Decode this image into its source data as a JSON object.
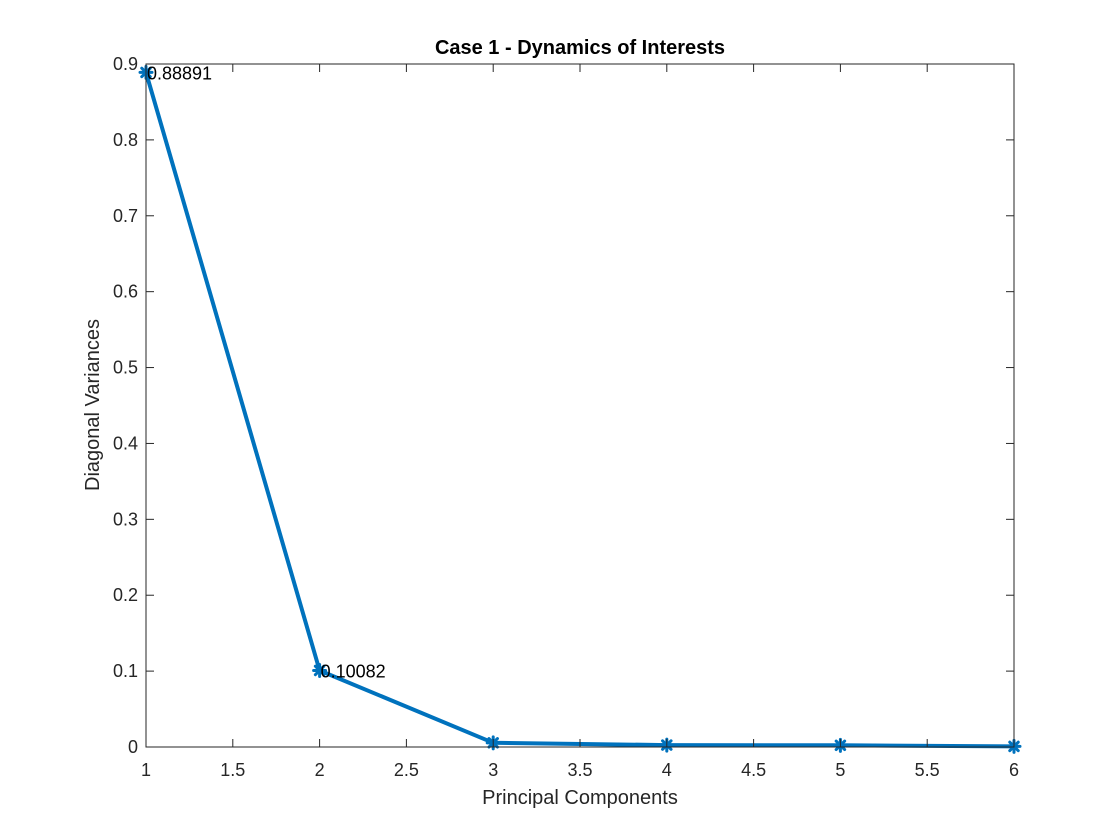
{
  "chart_data": {
    "type": "line",
    "title": "Case 1 - Dynamics of Interests",
    "xlabel": "Principal Components",
    "ylabel": "Diagonal Variances",
    "xlim": [
      1,
      6
    ],
    "ylim": [
      0,
      0.9
    ],
    "xticks": [
      1,
      1.5,
      2,
      2.5,
      3,
      3.5,
      4,
      4.5,
      5,
      5.5,
      6
    ],
    "xtick_labels": [
      "1",
      "1.5",
      "2",
      "2.5",
      "3",
      "3.5",
      "4",
      "4.5",
      "5",
      "5.5",
      "6"
    ],
    "yticks": [
      0,
      0.1,
      0.2,
      0.3,
      0.4,
      0.5,
      0.6,
      0.7,
      0.8,
      0.9
    ],
    "ytick_labels": [
      "0",
      "0.1",
      "0.2",
      "0.3",
      "0.4",
      "0.5",
      "0.6",
      "0.7",
      "0.8",
      "0.9"
    ],
    "grid": false,
    "series": [
      {
        "color": "#0072BD",
        "marker": "asterisk",
        "x": [
          1,
          2,
          3,
          4,
          5,
          6
        ],
        "y": [
          0.88891,
          0.10082,
          0.0055,
          0.0025,
          0.0022,
          0.0008
        ]
      }
    ],
    "annotations": [
      {
        "x": 1,
        "y": 0.88891,
        "text": "0.88891"
      },
      {
        "x": 2,
        "y": 0.10082,
        "text": "0.10082"
      }
    ]
  }
}
